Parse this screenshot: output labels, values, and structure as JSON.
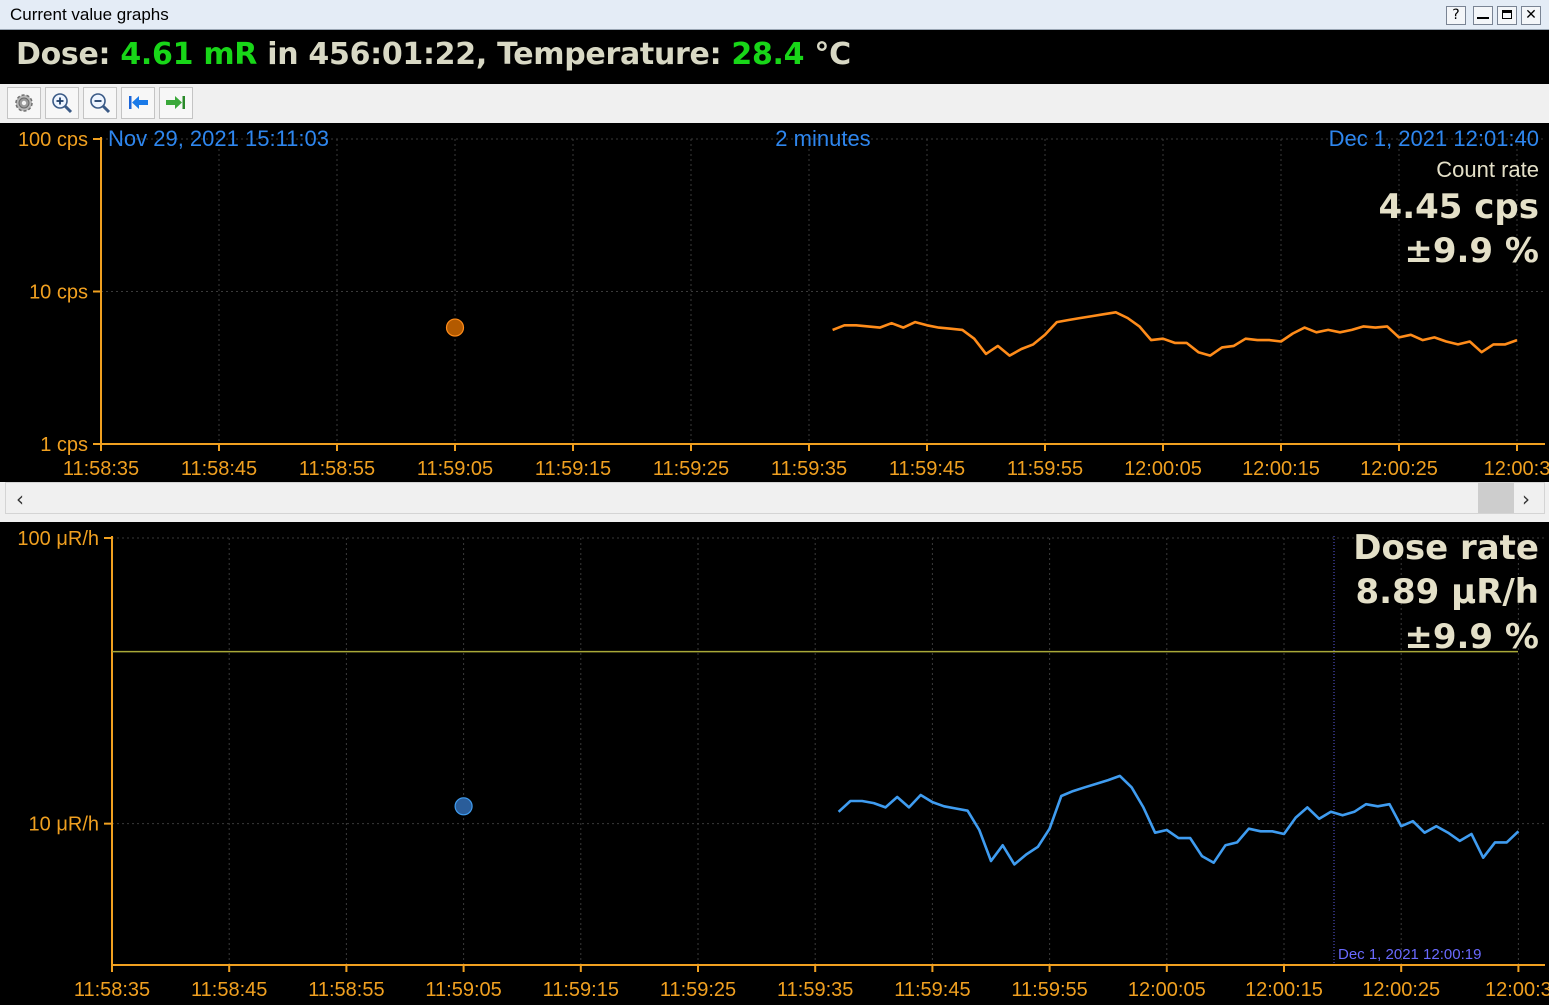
{
  "window": {
    "title": "Current value graphs",
    "buttons": [
      "?",
      "—",
      "□",
      "✕"
    ]
  },
  "header": {
    "dose_label": "Dose: ",
    "dose_value": "4.61 mR",
    "in_label": " in 456:01:22, Temperature: ",
    "temp_value": "28.4",
    "temp_unit": " °C"
  },
  "toolbar": {
    "items": [
      "gear-icon",
      "zoom-in-icon",
      "zoom-out-icon",
      "scroll-left-icon",
      "scroll-to-end-icon"
    ]
  },
  "count_chart": {
    "start_date": "Nov 29, 2021  15:11:03",
    "span": "2 minutes",
    "end_date": "Dec 1, 2021  12:01:40",
    "label": "Count rate",
    "value": "4.45 cps",
    "error": "±9.9 %",
    "yticks": [
      "100 cps",
      "10 cps",
      "1 cps"
    ],
    "color": "#ff8c1a"
  },
  "dose_chart": {
    "label": "Dose rate",
    "value": "8.89 μR/h",
    "error": "±9.9 %",
    "yticks": [
      "100 μR/h",
      "10 μR/h"
    ],
    "cursor_label": "Dec 1, 2021  12:00:19",
    "color": "#3f9cf0",
    "threshold_color": "#a8a838"
  },
  "xticks": [
    "11:58:35",
    "11:58:45",
    "11:58:55",
    "11:59:05",
    "11:59:15",
    "11:59:25",
    "11:59:35",
    "11:59:45",
    "11:59:55",
    "12:00:05",
    "12:00:15",
    "12:00:25",
    "12:00:3"
  ],
  "chart_data": [
    {
      "type": "line",
      "title": "Count rate",
      "ylabel": "cps",
      "yscale": "log",
      "ylim": [
        1,
        100
      ],
      "x": [
        "11:59:05",
        "11:59:37",
        "11:59:38",
        "11:59:39",
        "11:59:40",
        "11:59:41",
        "11:59:42",
        "11:59:43",
        "11:59:44",
        "11:59:45",
        "11:59:46",
        "11:59:47",
        "11:59:48",
        "11:59:49",
        "11:59:50",
        "11:59:51",
        "11:59:52",
        "11:59:53",
        "11:59:54",
        "11:59:55",
        "11:59:56",
        "11:59:57",
        "11:59:58",
        "11:59:59",
        "12:00:00",
        "12:00:01",
        "12:00:02",
        "12:00:03",
        "12:00:04",
        "12:00:05",
        "12:00:06",
        "12:00:07",
        "12:00:08",
        "12:00:09",
        "12:00:10",
        "12:00:11",
        "12:00:12",
        "12:00:13",
        "12:00:14",
        "12:00:15",
        "12:00:16",
        "12:00:17",
        "12:00:18",
        "12:00:19",
        "12:00:20",
        "12:00:21",
        "12:00:22",
        "12:00:23",
        "12:00:24",
        "12:00:25",
        "12:00:26",
        "12:00:27",
        "12:00:28",
        "12:00:29",
        "12:00:30",
        "12:00:31",
        "12:00:32",
        "12:00:33",
        "12:00:34",
        "12:00:35"
      ],
      "series": [
        {
          "values": [
            5.8,
            5.6,
            6.0,
            6.0,
            5.9,
            5.8,
            6.2,
            5.8,
            6.3,
            6.0,
            5.8,
            5.7,
            5.6,
            4.9,
            3.9,
            4.4,
            3.8,
            4.2,
            4.5,
            5.2,
            6.3,
            6.5,
            6.7,
            6.9,
            7.1,
            7.3,
            6.7,
            5.9,
            4.8,
            4.9,
            4.6,
            4.6,
            4.0,
            3.8,
            4.3,
            4.4,
            4.9,
            4.8,
            4.8,
            4.7,
            5.3,
            5.8,
            5.4,
            5.6,
            5.4,
            5.6,
            5.9,
            5.8,
            5.9,
            5.0,
            5.2,
            4.8,
            5.0,
            4.7,
            4.5,
            4.7,
            4.0,
            4.5,
            4.5,
            4.8
          ]
        }
      ]
    },
    {
      "type": "line",
      "title": "Dose rate",
      "ylabel": "μR/h",
      "yscale": "log",
      "ylim": [
        3.2,
        100
      ],
      "threshold": 40,
      "x": [
        "11:59:05",
        "11:59:37",
        "11:59:38",
        "11:59:39",
        "11:59:40",
        "11:59:41",
        "11:59:42",
        "11:59:43",
        "11:59:44",
        "11:59:45",
        "11:59:46",
        "11:59:47",
        "11:59:48",
        "11:59:49",
        "11:59:50",
        "11:59:51",
        "11:59:52",
        "11:59:53",
        "11:59:54",
        "11:59:55",
        "11:59:56",
        "11:59:57",
        "11:59:58",
        "11:59:59",
        "12:00:00",
        "12:00:01",
        "12:00:02",
        "12:00:03",
        "12:00:04",
        "12:00:05",
        "12:00:06",
        "12:00:07",
        "12:00:08",
        "12:00:09",
        "12:00:10",
        "12:00:11",
        "12:00:12",
        "12:00:13",
        "12:00:14",
        "12:00:15",
        "12:00:16",
        "12:00:17",
        "12:00:18",
        "12:00:19",
        "12:00:20",
        "12:00:21",
        "12:00:22",
        "12:00:23",
        "12:00:24",
        "12:00:25",
        "12:00:26",
        "12:00:27",
        "12:00:28",
        "12:00:29",
        "12:00:30",
        "12:00:31",
        "12:00:32",
        "12:00:33",
        "12:00:34",
        "12:00:35"
      ],
      "series": [
        {
          "values": [
            11.5,
            11.0,
            12.0,
            12.0,
            11.8,
            11.4,
            12.4,
            11.4,
            12.6,
            11.9,
            11.5,
            11.3,
            11.1,
            9.5,
            7.4,
            8.4,
            7.2,
            7.8,
            8.3,
            9.6,
            12.5,
            13.0,
            13.4,
            13.8,
            14.2,
            14.7,
            13.4,
            11.4,
            9.3,
            9.5,
            8.9,
            8.9,
            7.7,
            7.3,
            8.4,
            8.6,
            9.6,
            9.4,
            9.4,
            9.2,
            10.5,
            11.4,
            10.4,
            11.0,
            10.7,
            11.0,
            11.7,
            11.5,
            11.7,
            9.8,
            10.2,
            9.3,
            9.8,
            9.3,
            8.7,
            9.2,
            7.6,
            8.6,
            8.6,
            9.4
          ]
        }
      ]
    }
  ]
}
